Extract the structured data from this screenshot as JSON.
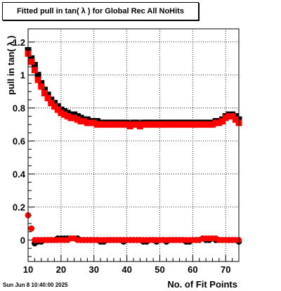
{
  "title": "Fitted pull in tan( λ ) for Global Rec All NoHits",
  "timestamp": "Sun Jun  8 10:40:00 2025",
  "chart_data": {
    "type": "scatter",
    "title": "Fitted pull in tan( λ ) for Global Rec All NoHits",
    "xlabel": "No. of Fit Points",
    "ylabel": "pull in tan( λ )",
    "xlim": [
      10,
      74
    ],
    "ylim": [
      -0.13,
      1.28
    ],
    "x_ticks": [
      10,
      20,
      30,
      40,
      50,
      60,
      70
    ],
    "y_ticks": [
      0,
      0.2,
      0.4,
      0.6,
      0.8,
      1,
      1.2
    ],
    "y_tick_labels": [
      "0",
      "0.2",
      "0.4",
      "0.6",
      "0.8",
      "1",
      "1.2"
    ],
    "grid": true,
    "series": [
      {
        "color": "#000000",
        "marker": "square",
        "role": "sigma",
        "x": [
          10,
          11,
          12,
          13,
          14,
          15,
          16,
          17,
          18,
          19,
          20,
          21,
          22,
          23,
          24,
          25,
          26,
          27,
          28,
          29,
          30,
          31,
          32,
          33,
          34,
          35,
          36,
          37,
          38,
          39,
          40,
          41,
          42,
          43,
          44,
          45,
          46,
          47,
          48,
          49,
          50,
          51,
          52,
          53,
          54,
          55,
          56,
          57,
          58,
          59,
          60,
          61,
          62,
          63,
          64,
          65,
          66,
          67,
          68,
          69,
          70,
          71,
          72,
          73,
          74
        ],
        "y": [
          1.15,
          1.1,
          1.06,
          1.0,
          0.95,
          0.91,
          0.88,
          0.85,
          0.83,
          0.81,
          0.79,
          0.78,
          0.77,
          0.76,
          0.76,
          0.75,
          0.74,
          0.73,
          0.73,
          0.72,
          0.72,
          0.72,
          0.71,
          0.71,
          0.71,
          0.71,
          0.71,
          0.71,
          0.71,
          0.71,
          0.71,
          0.7,
          0.71,
          0.71,
          0.7,
          0.71,
          0.71,
          0.71,
          0.71,
          0.71,
          0.71,
          0.71,
          0.71,
          0.71,
          0.71,
          0.71,
          0.71,
          0.71,
          0.71,
          0.71,
          0.71,
          0.71,
          0.71,
          0.71,
          0.71,
          0.71,
          0.71,
          0.72,
          0.72,
          0.73,
          0.75,
          0.76,
          0.76,
          0.75,
          0.73
        ]
      },
      {
        "color": "#ff0000",
        "marker": "square",
        "role": "sigma",
        "x": [
          10,
          11,
          12,
          13,
          14,
          15,
          16,
          17,
          18,
          19,
          20,
          21,
          22,
          23,
          24,
          25,
          26,
          27,
          28,
          29,
          30,
          31,
          32,
          33,
          34,
          35,
          36,
          37,
          38,
          39,
          40,
          41,
          42,
          43,
          44,
          45,
          46,
          47,
          48,
          49,
          50,
          51,
          52,
          53,
          54,
          55,
          56,
          57,
          58,
          59,
          60,
          61,
          62,
          63,
          64,
          65,
          66,
          67,
          68,
          69,
          70,
          71,
          72,
          73,
          74
        ],
        "y": [
          1.13,
          1.08,
          1.03,
          0.97,
          0.93,
          0.89,
          0.86,
          0.83,
          0.81,
          0.79,
          0.77,
          0.76,
          0.75,
          0.74,
          0.74,
          0.73,
          0.72,
          0.72,
          0.71,
          0.71,
          0.71,
          0.7,
          0.7,
          0.7,
          0.7,
          0.7,
          0.7,
          0.7,
          0.7,
          0.7,
          0.7,
          0.69,
          0.7,
          0.7,
          0.69,
          0.7,
          0.7,
          0.7,
          0.7,
          0.7,
          0.7,
          0.7,
          0.7,
          0.7,
          0.7,
          0.7,
          0.7,
          0.7,
          0.7,
          0.7,
          0.7,
          0.7,
          0.7,
          0.7,
          0.7,
          0.7,
          0.7,
          0.71,
          0.71,
          0.72,
          0.74,
          0.75,
          0.75,
          0.73,
          0.71
        ]
      },
      {
        "color": "#000000",
        "marker": "circle",
        "role": "mean",
        "x": [
          10,
          11,
          12,
          13,
          14,
          15,
          16,
          17,
          18,
          19,
          20,
          21,
          22,
          23,
          24,
          25,
          26,
          27,
          28,
          29,
          30,
          31,
          32,
          33,
          34,
          35,
          36,
          37,
          38,
          39,
          40,
          41,
          42,
          43,
          44,
          45,
          46,
          47,
          48,
          49,
          50,
          51,
          52,
          53,
          54,
          55,
          56,
          57,
          58,
          59,
          60,
          61,
          62,
          63,
          64,
          65,
          66,
          67,
          68,
          69,
          70,
          71,
          72,
          73,
          74
        ],
        "y": [
          0.15,
          0.07,
          -0.02,
          -0.01,
          -0.01,
          0.0,
          0.0,
          0.0,
          0.0,
          0.01,
          0.01,
          0.01,
          0.01,
          0.01,
          0.01,
          0.01,
          0.0,
          0.0,
          0.0,
          0.0,
          0.0,
          0.0,
          -0.01,
          -0.01,
          0.0,
          0.0,
          0.0,
          0.0,
          0.0,
          -0.01,
          0.0,
          0.0,
          0.0,
          0.0,
          0.0,
          -0.01,
          -0.01,
          0.0,
          0.0,
          -0.01,
          0.0,
          0.0,
          -0.01,
          0.0,
          0.0,
          0.0,
          0.0,
          0.0,
          -0.01,
          -0.01,
          0.0,
          0.0,
          0.0,
          0.01,
          0.0,
          0.0,
          0.01,
          0.0,
          0.0,
          0.0,
          0.0,
          0.0,
          0.0,
          0.0,
          -0.01
        ]
      },
      {
        "color": "#ff0000",
        "marker": "circle",
        "role": "mean",
        "x": [
          10,
          11,
          12,
          13,
          14,
          15,
          16,
          17,
          18,
          19,
          20,
          21,
          22,
          23,
          24,
          25,
          26,
          27,
          28,
          29,
          30,
          31,
          32,
          33,
          34,
          35,
          36,
          37,
          38,
          39,
          40,
          41,
          42,
          43,
          44,
          45,
          46,
          47,
          48,
          49,
          50,
          51,
          52,
          53,
          54,
          55,
          56,
          57,
          58,
          59,
          60,
          61,
          62,
          63,
          64,
          65,
          66,
          67,
          68,
          69,
          70,
          71,
          72,
          73,
          74
        ],
        "y": [
          0.15,
          0.07,
          0.0,
          0.0,
          0.0,
          0.0,
          0.0,
          0.0,
          0.0,
          0.0,
          0.0,
          0.0,
          0.0,
          0.01,
          0.01,
          0.0,
          0.0,
          0.0,
          0.0,
          0.0,
          0.0,
          0.0,
          0.0,
          0.0,
          0.0,
          0.0,
          0.0,
          0.0,
          0.0,
          0.0,
          0.0,
          0.0,
          0.0,
          0.0,
          0.0,
          0.0,
          0.0,
          0.0,
          0.0,
          0.0,
          0.0,
          0.0,
          0.0,
          0.0,
          0.0,
          0.0,
          0.0,
          0.0,
          0.0,
          0.0,
          0.0,
          0.0,
          0.0,
          0.01,
          0.01,
          0.01,
          0.01,
          0.01,
          0.0,
          0.0,
          0.0,
          0.0,
          0.0,
          0.0,
          0.0
        ]
      }
    ]
  }
}
